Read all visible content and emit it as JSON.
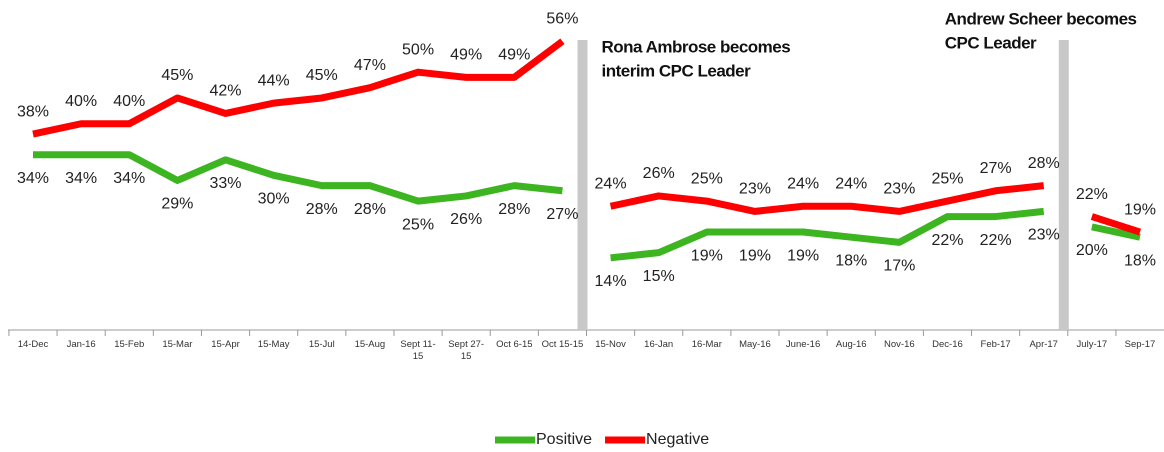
{
  "chart_data": {
    "type": "line",
    "categories": [
      "14-Dec",
      "Jan-16",
      "15-Feb",
      "15-Mar",
      "15-Apr",
      "15-May",
      "15-Jul",
      "15-Aug",
      "Sept 11-15",
      "Sept 27-15",
      "Oct 6-15",
      "Oct 15-15",
      "15-Nov",
      "16-Jan",
      "16-Mar",
      "May-16",
      "June-16",
      "Aug-16",
      "Nov-16",
      "Dec-16",
      "Feb-17",
      "Apr-17",
      "July-17",
      "Sep-17"
    ],
    "series": [
      {
        "name": "Positive",
        "color": "#3cb521",
        "values": [
          34,
          34,
          34,
          29,
          33,
          30,
          28,
          28,
          25,
          26,
          28,
          27,
          14,
          15,
          19,
          19,
          19,
          18,
          17,
          22,
          22,
          23,
          20,
          18
        ],
        "value_labels": [
          "34%",
          "34%",
          "34%",
          "29%",
          "33%",
          "30%",
          "28%",
          "28%",
          "25%",
          "26%",
          "28%",
          "27%",
          "14%",
          "15%",
          "19%",
          "19%",
          "19%",
          "18%",
          "17%",
          "22%",
          "22%",
          "23%",
          "20%",
          "18%"
        ]
      },
      {
        "name": "Negative",
        "color": "#ff0000",
        "values": [
          38,
          40,
          40,
          45,
          42,
          44,
          45,
          47,
          50,
          49,
          49,
          56,
          24,
          26,
          25,
          23,
          24,
          24,
          23,
          25,
          27,
          28,
          22,
          19
        ],
        "value_labels": [
          "38%",
          "40%",
          "40%",
          "45%",
          "42%",
          "44%",
          "45%",
          "47%",
          "50%",
          "49%",
          "49%",
          "56%",
          "24%",
          "26%",
          "25%",
          "23%",
          "24%",
          "24%",
          "23%",
          "25%",
          "27%",
          "28%",
          "22%",
          "19%"
        ]
      }
    ],
    "ylim": [
      0,
      64
    ],
    "annotations": [
      {
        "after": "Oct 15-15",
        "lines": [
          "Rona Ambrose becomes",
          "interim CPC Leader"
        ]
      },
      {
        "after": "Apr-17",
        "lines": [
          "Andrew Scheer becomes",
          "CPC Leader"
        ]
      }
    ],
    "legend": "bottom"
  }
}
